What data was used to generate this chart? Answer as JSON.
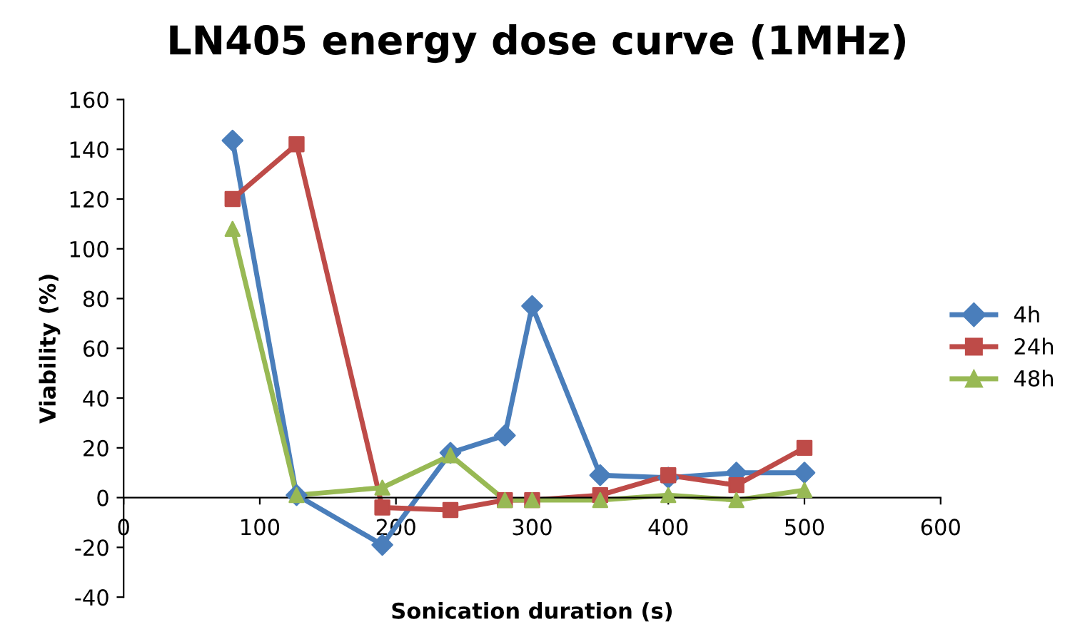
{
  "chart_data": {
    "type": "line",
    "title": "LN405 energy dose curve (1MHz)",
    "xlabel": "Sonication duration (s)",
    "ylabel": "Viability (%)",
    "x": [
      80,
      127,
      190,
      240,
      280,
      300,
      350,
      400,
      450,
      500
    ],
    "series": [
      {
        "name": "4h",
        "color": "#4a7ebb",
        "marker": "diamond",
        "values": [
          143.5,
          1,
          -19,
          18,
          25,
          77,
          9,
          8,
          10,
          10
        ]
      },
      {
        "name": "24h",
        "color": "#be4b48",
        "marker": "square",
        "values": [
          120,
          142,
          -4,
          -5,
          -1,
          -1,
          1,
          9,
          5,
          20
        ]
      },
      {
        "name": "48h",
        "color": "#98b954",
        "marker": "triangle",
        "values": [
          108,
          1,
          4,
          17,
          -1,
          -1,
          -1,
          1,
          -1,
          3
        ]
      }
    ],
    "xlim": [
      0,
      600
    ],
    "xticks": [
      0,
      100,
      200,
      300,
      400,
      500,
      600
    ],
    "ylim": [
      -40,
      160
    ],
    "yticks": [
      -40,
      -20,
      0,
      20,
      40,
      60,
      80,
      100,
      120,
      140,
      160
    ],
    "line_style": "solid",
    "grid": false,
    "legend": "right"
  }
}
